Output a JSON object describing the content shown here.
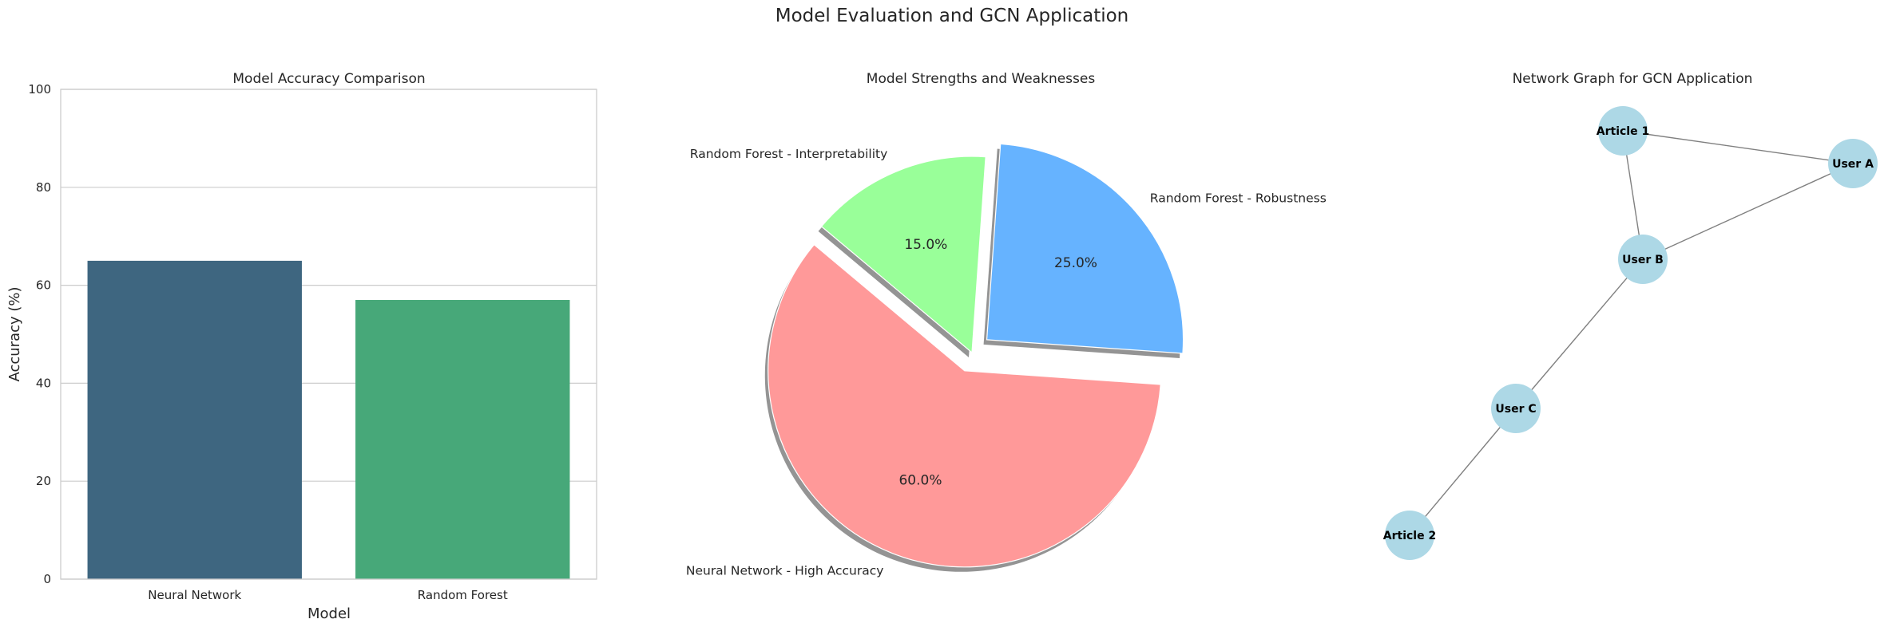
{
  "figure": {
    "title": "Model Evaluation and GCN Application"
  },
  "chart_data": [
    {
      "type": "bar",
      "title": "Model Accuracy Comparison",
      "xlabel": "Model",
      "ylabel": "Accuracy (%)",
      "categories": [
        "Neural Network",
        "Random Forest"
      ],
      "values": [
        65,
        57
      ],
      "colors": [
        "#3e6680",
        "#47a879"
      ],
      "ylim": [
        0,
        100
      ],
      "yticks": [
        0,
        20,
        40,
        60,
        80,
        100
      ],
      "grid": true
    },
    {
      "type": "pie",
      "title": "Model Strengths and Weaknesses",
      "labels": [
        "Neural Network - High Accuracy",
        "Random Forest - Robustness",
        "Random Forest - Interpretability"
      ],
      "values": [
        60,
        25,
        15
      ],
      "percent_labels": [
        "60.0%",
        "25.0%",
        "15.0%"
      ],
      "colors": [
        "#ff9999",
        "#66b3ff",
        "#99ff99"
      ],
      "explode": [
        0.1,
        0.1,
        0
      ],
      "shadow": true,
      "startangle_deg": 140
    },
    {
      "type": "network",
      "title": "Network Graph for GCN Application",
      "nodes": [
        "Article 1",
        "User A",
        "User B",
        "User C",
        "Article 2"
      ],
      "edges": [
        [
          "Article 1",
          "User A"
        ],
        [
          "Article 1",
          "User B"
        ],
        [
          "User A",
          "User B"
        ],
        [
          "User B",
          "User C"
        ],
        [
          "User C",
          "Article 2"
        ]
      ],
      "node_color": "#add8e6",
      "edge_color": "#808080"
    }
  ]
}
